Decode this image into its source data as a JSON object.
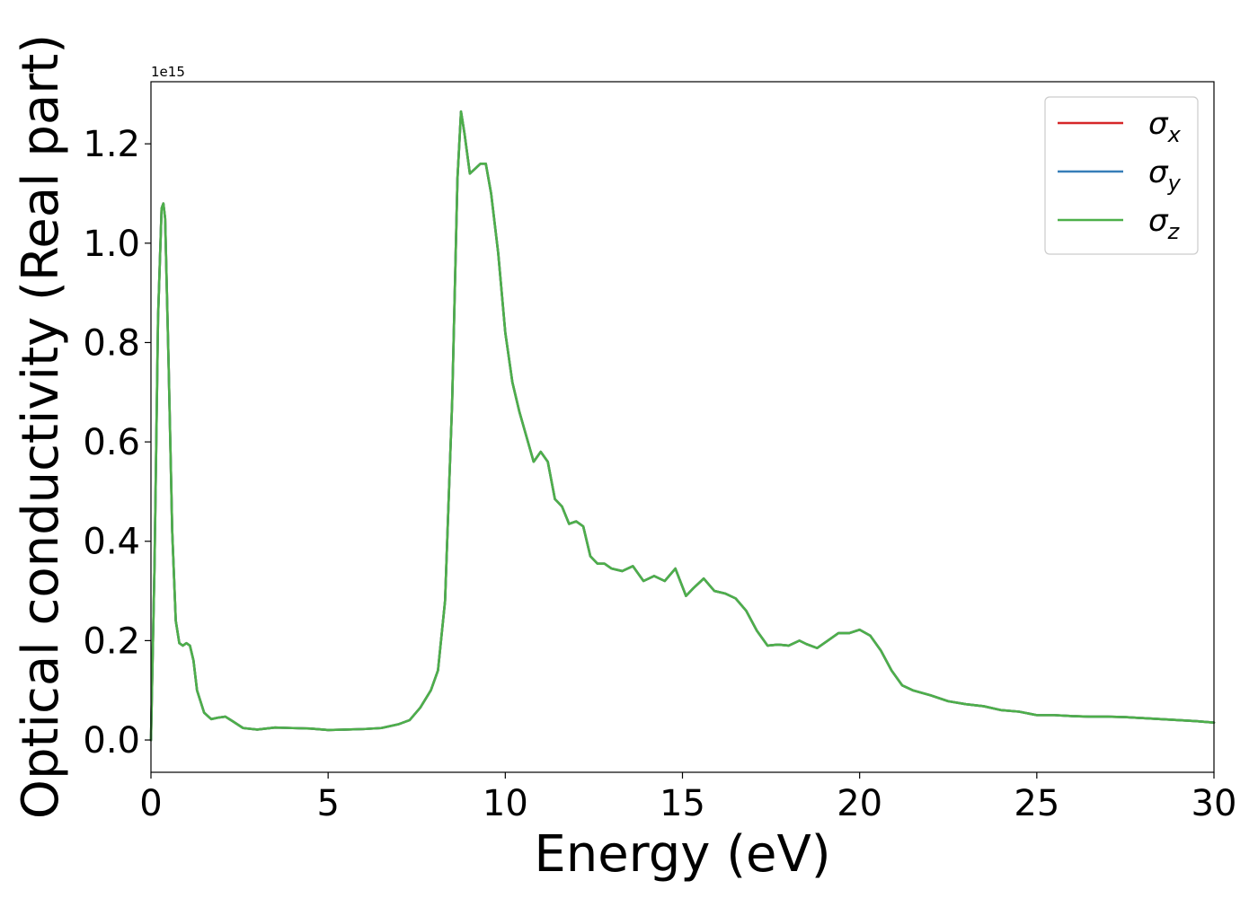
{
  "chart_data": {
    "type": "line",
    "title": "",
    "xlabel": "Energy (eV)",
    "ylabel": "Optical conductivity (Real part)",
    "offset_text": "1e15",
    "xlim": [
      0,
      30
    ],
    "ylim": [
      -0.065,
      1.325
    ],
    "y_scale_multiplier": 1000000000000000.0,
    "x_ticks": [
      0,
      5,
      10,
      15,
      20,
      25,
      30
    ],
    "x_tick_labels": [
      "0",
      "5",
      "10",
      "15",
      "20",
      "25",
      "30"
    ],
    "y_ticks": [
      0.0,
      0.2,
      0.4,
      0.6,
      0.8,
      1.0,
      1.2
    ],
    "y_tick_labels": [
      "0.0",
      "0.2",
      "0.4",
      "0.6",
      "0.8",
      "1.0",
      "1.2"
    ],
    "grid": false,
    "legend_position": "top-right",
    "x": [
      0.0,
      0.1,
      0.2,
      0.3,
      0.35,
      0.4,
      0.5,
      0.6,
      0.7,
      0.8,
      0.9,
      1.0,
      1.1,
      1.2,
      1.3,
      1.5,
      1.7,
      1.9,
      2.1,
      2.3,
      2.6,
      3.0,
      3.5,
      4.0,
      4.5,
      5.0,
      5.5,
      6.0,
      6.5,
      7.0,
      7.3,
      7.6,
      7.9,
      8.1,
      8.3,
      8.5,
      8.65,
      8.75,
      8.85,
      9.0,
      9.15,
      9.3,
      9.45,
      9.6,
      9.8,
      10.0,
      10.2,
      10.4,
      10.6,
      10.8,
      11.0,
      11.2,
      11.4,
      11.6,
      11.8,
      12.0,
      12.2,
      12.4,
      12.6,
      12.8,
      13.0,
      13.3,
      13.6,
      13.9,
      14.2,
      14.5,
      14.8,
      15.1,
      15.3,
      15.6,
      15.9,
      16.2,
      16.5,
      16.8,
      17.1,
      17.4,
      17.7,
      18.0,
      18.3,
      18.5,
      18.8,
      19.1,
      19.4,
      19.7,
      20.0,
      20.3,
      20.6,
      20.9,
      21.2,
      21.5,
      22.0,
      22.5,
      23.0,
      23.5,
      24.0,
      24.5,
      25.0,
      25.5,
      26.0,
      26.5,
      27.0,
      27.5,
      28.0,
      28.5,
      29.0,
      29.5,
      30.0
    ],
    "series": [
      {
        "name": "σx",
        "color": "#d62728",
        "values": [
          0.0,
          0.35,
          0.85,
          1.07,
          1.08,
          1.05,
          0.75,
          0.42,
          0.24,
          0.195,
          0.19,
          0.195,
          0.19,
          0.16,
          0.1,
          0.055,
          0.042,
          0.045,
          0.047,
          0.038,
          0.024,
          0.021,
          0.025,
          0.024,
          0.023,
          0.02,
          0.021,
          0.022,
          0.024,
          0.032,
          0.04,
          0.065,
          0.1,
          0.14,
          0.28,
          0.68,
          1.13,
          1.265,
          1.22,
          1.14,
          1.15,
          1.16,
          1.16,
          1.1,
          0.98,
          0.82,
          0.72,
          0.66,
          0.61,
          0.56,
          0.58,
          0.56,
          0.485,
          0.47,
          0.435,
          0.44,
          0.43,
          0.37,
          0.355,
          0.355,
          0.345,
          0.34,
          0.35,
          0.32,
          0.33,
          0.32,
          0.345,
          0.29,
          0.305,
          0.325,
          0.3,
          0.295,
          0.285,
          0.26,
          0.22,
          0.19,
          0.192,
          0.19,
          0.2,
          0.193,
          0.185,
          0.2,
          0.215,
          0.215,
          0.222,
          0.21,
          0.18,
          0.14,
          0.11,
          0.1,
          0.09,
          0.078,
          0.072,
          0.068,
          0.06,
          0.057,
          0.05,
          0.05,
          0.048,
          0.047,
          0.047,
          0.046,
          0.044,
          0.042,
          0.04,
          0.038,
          0.035
        ]
      },
      {
        "name": "σy",
        "color": "#377eb8",
        "values": [
          0.0,
          0.35,
          0.85,
          1.07,
          1.08,
          1.05,
          0.75,
          0.42,
          0.24,
          0.195,
          0.19,
          0.195,
          0.19,
          0.16,
          0.1,
          0.055,
          0.042,
          0.045,
          0.047,
          0.038,
          0.024,
          0.021,
          0.025,
          0.024,
          0.023,
          0.02,
          0.021,
          0.022,
          0.024,
          0.032,
          0.04,
          0.065,
          0.1,
          0.14,
          0.28,
          0.68,
          1.13,
          1.265,
          1.22,
          1.14,
          1.15,
          1.16,
          1.16,
          1.1,
          0.98,
          0.82,
          0.72,
          0.66,
          0.61,
          0.56,
          0.58,
          0.56,
          0.485,
          0.47,
          0.435,
          0.44,
          0.43,
          0.37,
          0.355,
          0.355,
          0.345,
          0.34,
          0.35,
          0.32,
          0.33,
          0.32,
          0.345,
          0.29,
          0.305,
          0.325,
          0.3,
          0.295,
          0.285,
          0.26,
          0.22,
          0.19,
          0.192,
          0.19,
          0.2,
          0.193,
          0.185,
          0.2,
          0.215,
          0.215,
          0.222,
          0.21,
          0.18,
          0.14,
          0.11,
          0.1,
          0.09,
          0.078,
          0.072,
          0.068,
          0.06,
          0.057,
          0.05,
          0.05,
          0.048,
          0.047,
          0.047,
          0.046,
          0.044,
          0.042,
          0.04,
          0.038,
          0.035
        ]
      },
      {
        "name": "σz",
        "color": "#4daf4a",
        "values": [
          0.0,
          0.35,
          0.85,
          1.07,
          1.08,
          1.05,
          0.75,
          0.42,
          0.24,
          0.195,
          0.19,
          0.195,
          0.19,
          0.16,
          0.1,
          0.055,
          0.042,
          0.045,
          0.047,
          0.038,
          0.024,
          0.021,
          0.025,
          0.024,
          0.023,
          0.02,
          0.021,
          0.022,
          0.024,
          0.032,
          0.04,
          0.065,
          0.1,
          0.14,
          0.28,
          0.68,
          1.13,
          1.265,
          1.22,
          1.14,
          1.15,
          1.16,
          1.16,
          1.1,
          0.98,
          0.82,
          0.72,
          0.66,
          0.61,
          0.56,
          0.58,
          0.56,
          0.485,
          0.47,
          0.435,
          0.44,
          0.43,
          0.37,
          0.355,
          0.355,
          0.345,
          0.34,
          0.35,
          0.32,
          0.33,
          0.32,
          0.345,
          0.29,
          0.305,
          0.325,
          0.3,
          0.295,
          0.285,
          0.26,
          0.22,
          0.19,
          0.192,
          0.19,
          0.2,
          0.193,
          0.185,
          0.2,
          0.215,
          0.215,
          0.222,
          0.21,
          0.18,
          0.14,
          0.11,
          0.1,
          0.09,
          0.078,
          0.072,
          0.068,
          0.06,
          0.057,
          0.05,
          0.05,
          0.048,
          0.047,
          0.047,
          0.046,
          0.044,
          0.042,
          0.04,
          0.038,
          0.035
        ]
      }
    ]
  }
}
